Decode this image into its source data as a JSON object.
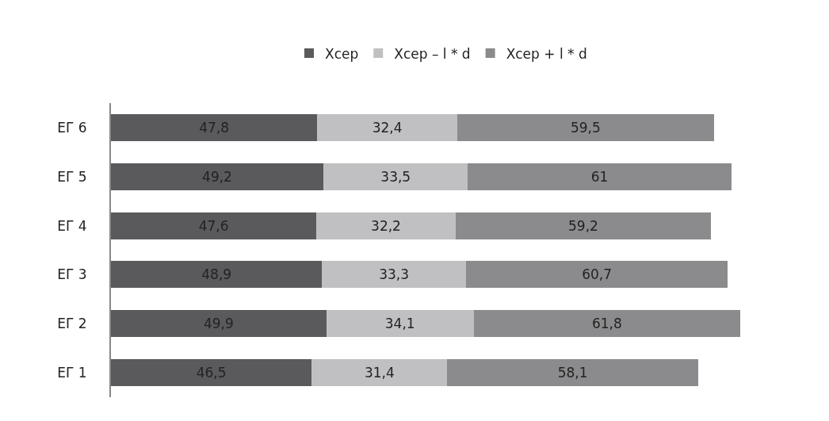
{
  "chart_data": {
    "type": "bar",
    "orientation": "horizontal",
    "stacked": true,
    "tick_labels": "y",
    "legend": "top",
    "categories": [
      "ЕГ 6",
      "ЕГ 5",
      "ЕГ 4",
      "ЕГ 3",
      "ЕГ 2",
      "ЕГ 1"
    ],
    "series": [
      {
        "name": "Хсер",
        "color": "#5a595b",
        "values": [
          47.8,
          49.2,
          47.6,
          48.9,
          49.9,
          46.5
        ],
        "value_labels": [
          "47,8",
          "49,2",
          "47,6",
          "48,9",
          "49,9",
          "46,5"
        ]
      },
      {
        "name": "Хсер – l * d",
        "color": "#c0bfc1",
        "values": [
          32.4,
          33.5,
          32.2,
          33.3,
          34.1,
          31.4
        ],
        "value_labels": [
          "32,4",
          "33,5",
          "32,2",
          "33,3",
          "34,1",
          "31,4"
        ]
      },
      {
        "name": "Хсер + l * d",
        "color": "#8b8a8c",
        "values": [
          59.5,
          61,
          59.2,
          60.7,
          61.8,
          58.1
        ],
        "value_labels": [
          "59,5",
          "61",
          "59,2",
          "60,7",
          "61,8",
          "58,1"
        ]
      }
    ]
  }
}
